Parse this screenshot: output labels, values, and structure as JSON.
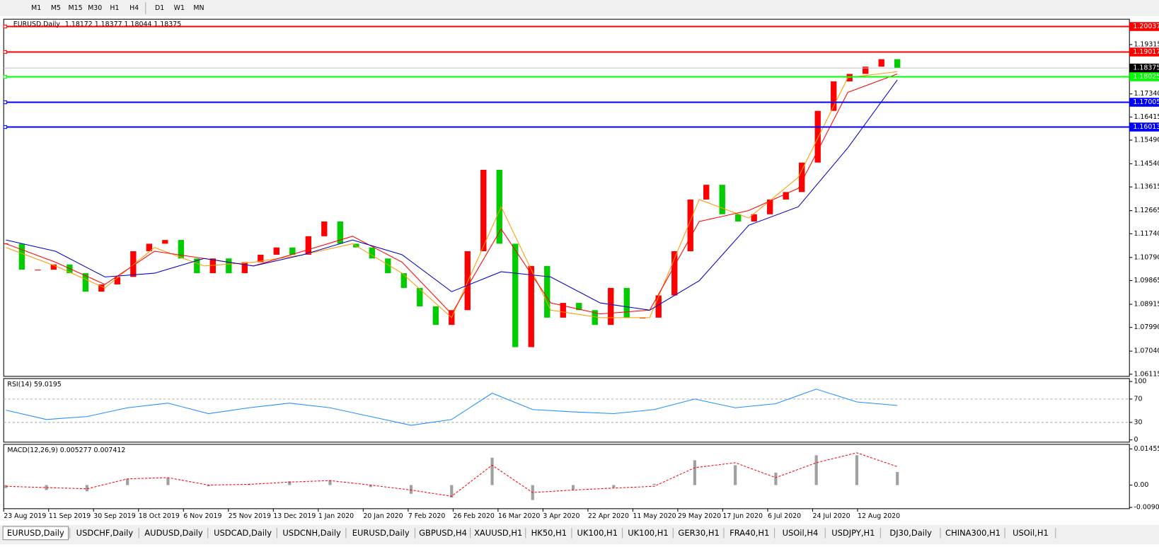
{
  "toolbar": {
    "timeframes": [
      "M1",
      "M5",
      "M15",
      "M30",
      "H1",
      "H4",
      "D1",
      "W1",
      "MN"
    ]
  },
  "chart_data": [
    {
      "type": "candlestick",
      "title": "EURUSD,Daily",
      "quote": "1.18172 1.18377 1.18044 1.18375",
      "up_color": "#ff0000",
      "down_color": "#00cc00",
      "closes": [
        1.1134,
        1.103,
        1.103,
        1.1051,
        1.1016,
        1.0942,
        1.0971,
        1.1001,
        1.1104,
        1.1134,
        1.1149,
        1.1075,
        1.1016,
        1.1075,
        1.1016,
        1.106,
        1.109,
        1.1119,
        1.109,
        1.1164,
        1.1223,
        1.1134,
        1.1119,
        1.1075,
        1.1016,
        1.0957,
        1.0883,
        1.0809,
        1.0868,
        1.1104,
        1.143,
        1.1134,
        1.072,
        1.1045,
        1.0838,
        1.0897,
        1.0868,
        1.0809,
        1.0957,
        1.0838,
        1.0838,
        1.0927,
        1.1104,
        1.1311,
        1.137,
        1.1252,
        1.1223,
        1.1252,
        1.1311,
        1.1341,
        1.1459,
        1.1666,
        1.1784,
        1.1814,
        1.1843,
        1.1873,
        1.18375
      ],
      "series": [
        {
          "color": "#ff9900",
          "values": [
            1.1119,
            1.1045,
            1.0957,
            1.1119,
            1.1045,
            1.106,
            1.109,
            1.1134,
            1.1016,
            1.0838,
            1.1282,
            1.0868,
            1.0838,
            1.0838,
            1.1311,
            1.1237,
            1.14,
            1.1799,
            1.1823
          ]
        },
        {
          "color": "#ff0000",
          "values": [
            1.1134,
            1.106,
            1.0971,
            1.1104,
            1.1075,
            1.1045,
            1.1104,
            1.1164,
            1.106,
            1.0853,
            1.1193,
            1.0897,
            1.0853,
            1.0868,
            1.1223,
            1.1267,
            1.1356,
            1.174,
            1.1814
          ]
        },
        {
          "color": "#0000cc",
          "values": [
            1.1149,
            1.1104,
            1.1001,
            1.1016,
            1.1075,
            1.1045,
            1.109,
            1.1149,
            1.109,
            1.0942,
            1.1022,
            1.1001,
            1.0897,
            1.0868,
            1.0986,
            1.1208,
            1.1282,
            1.1518,
            1.179
          ]
        }
      ],
      "ylim": [
        1.0603,
        1.2033
      ],
      "yticks": [
        1.19315,
        {
          "value": 1.1734,
          "label": "1.17340"
        },
        1.16415,
        {
          "value": 1.1549,
          "label": "1.15490"
        },
        {
          "value": 1.1454,
          "label": "1.14540"
        },
        1.13615,
        1.12665,
        {
          "value": 1.1174,
          "label": "1.11740"
        },
        {
          "value": 1.1079,
          "label": "1.10790"
        },
        1.09865,
        1.08915,
        {
          "value": 1.0799,
          "label": "1.07990"
        },
        {
          "value": 1.0704,
          "label": "1.07040"
        },
        1.06115
      ],
      "levels": [
        {
          "value": 1.20037,
          "color": "#ff0000"
        },
        {
          "value": 1.19017,
          "color": "#ff0000"
        },
        {
          "value": 1.18025,
          "color": "#00ff00"
        },
        {
          "value": 1.17005,
          "color": "#0000ff"
        },
        {
          "value": 1.16013,
          "color": "#0000ff"
        }
      ],
      "current_price": 1.18375,
      "x_labels": [
        "23 Aug 2019",
        "11 Sep 2019",
        "30 Sep 2019",
        "18 Oct 2019",
        "6 Nov 2019",
        "25 Nov 2019",
        "13 Dec 2019",
        "1 Jan 2020",
        "20 Jan 2020",
        "7 Feb 2020",
        "26 Feb 2020",
        "16 Mar 2020",
        "3 Apr 2020",
        "22 Apr 2020",
        "11 May 2020",
        "29 May 2020",
        "17 Jun 2020",
        "6 Jul 2020",
        "24 Jul 2020",
        "12 Aug 2020"
      ]
    },
    {
      "type": "line",
      "title": "RSI(14) 59.0195",
      "color": "#1e90ff",
      "values": [
        51,
        35,
        40,
        55,
        63,
        45,
        55,
        63,
        55,
        40,
        25,
        35,
        80,
        52,
        48,
        45,
        52,
        70,
        55,
        62,
        87,
        65,
        59
      ],
      "ylim": [
        0,
        100
      ],
      "yticks": [
        100,
        70,
        30,
        0
      ],
      "levels": [
        70,
        30
      ]
    },
    {
      "type": "macd",
      "title": "MACD(12,26,9) 0.005277 0.007412",
      "hist_color": "#a0a0a0",
      "signal_color": "#ff0000",
      "histogram": [
        -0.0012,
        -0.002,
        -0.0025,
        0.0025,
        0.003,
        -0.0005,
        0.0005,
        0.0015,
        0.002,
        -0.0008,
        -0.0035,
        -0.005,
        0.011,
        -0.006,
        -0.002,
        -0.001,
        0.0005,
        0.01,
        0.008,
        0.005,
        0.012,
        0.012,
        0.005277
      ],
      "signal": [
        -0.0005,
        -0.001,
        -0.0015,
        0.0025,
        0.003,
        0.0,
        0.0003,
        0.0012,
        0.0018,
        0.0,
        -0.002,
        -0.0045,
        0.008,
        -0.003,
        -0.002,
        -0.0012,
        -0.0005,
        0.007,
        0.009,
        0.003,
        0.009,
        0.013,
        0.007412
      ],
      "ylim": [
        -0.0095,
        0.0155
      ],
      "yticks": [
        0.014556,
        {
          "value": 0,
          "label": "0.00"
        },
        {
          "value": -0.009,
          "label": "-0.00900"
        }
      ]
    }
  ],
  "tabs": [
    "EURUSD,Daily",
    "USDCHF,Daily",
    "AUDUSD,Daily",
    "USDCAD,Daily",
    "USDCNH,Daily",
    "EURUSD,Daily",
    "GBPUSD,H4",
    "XAUUSD,H1",
    "HK50,H1",
    "UK100,H1",
    "UK100,H1",
    "GER30,H1",
    "FRA40,H1",
    "USOil,H4",
    "USDJPY,H1",
    "DJ30,Daily",
    "CHINA300,H1",
    "USOil,H1"
  ]
}
